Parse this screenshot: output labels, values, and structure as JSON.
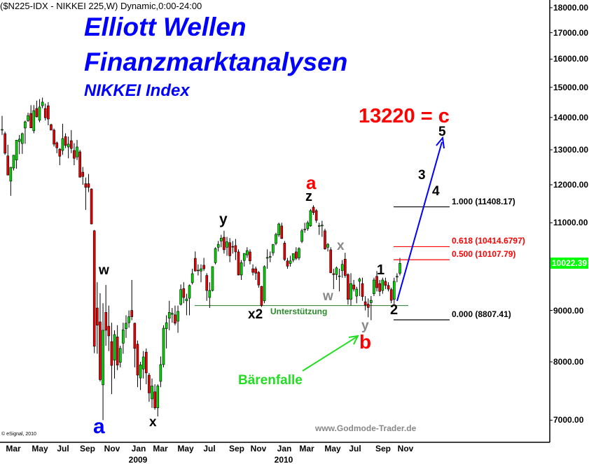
{
  "chart_data": {
    "type": "candlestick",
    "title": "($N225-IDX - NIKKEI 225,W) Dynamic,0:00-24:00",
    "y_scale": "log",
    "ylim": [
      6900,
      18300
    ],
    "y_ticks": [
      "18000.00",
      "17000.00",
      "16000.00",
      "15000.00",
      "14000.00",
      "13000.00",
      "12000.00",
      "11000.00",
      "9000.00",
      "8000.00",
      "7000.00"
    ],
    "y_tick_values": [
      18000,
      17000,
      16000,
      15000,
      14000,
      13000,
      12000,
      11000,
      9000,
      8000,
      7000
    ],
    "x_ticks": [
      "Mar",
      "May",
      "Jul",
      "Sep",
      "Nov",
      "Jan",
      "Mar",
      "May",
      "Jul",
      "Sep",
      "Nov",
      "Jan",
      "Mar",
      "May",
      "Jul",
      "Sep",
      "Nov"
    ],
    "x_years": [
      {
        "label": "2009",
        "under_tick": 5
      },
      {
        "label": "2010",
        "under_tick": 11
      }
    ],
    "last_price": {
      "label": "10022.39",
      "value": 10022.39,
      "color": "#00ff00"
    },
    "colors": {
      "up": "#00dd00",
      "down": "#ee0000",
      "wave": "#0000ff",
      "fib_main": "#000000",
      "fib_mid": "#ff0000",
      "support": "#2a7a2a"
    },
    "ohlc": [
      [
        13600,
        14050,
        13450,
        13620
      ],
      [
        13490,
        13550,
        12850,
        12900
      ],
      [
        12820,
        13150,
        12260,
        12270
      ],
      [
        12100,
        12500,
        11700,
        12490
      ],
      [
        12470,
        12850,
        12400,
        12840
      ],
      [
        12700,
        13300,
        12450,
        13290
      ],
      [
        13250,
        13450,
        12870,
        13320
      ],
      [
        13190,
        13520,
        12880,
        13490
      ],
      [
        13665,
        13900,
        13180,
        13860
      ],
      [
        13900,
        14150,
        13860,
        14060
      ],
      [
        14130,
        14400,
        13660,
        13670
      ],
      [
        13580,
        14400,
        13500,
        14220
      ],
      [
        14290,
        14550,
        14000,
        14020
      ],
      [
        13910,
        14600,
        13850,
        14340
      ],
      [
        14380,
        14650,
        14300,
        14500
      ],
      [
        14290,
        14450,
        13900,
        13990
      ],
      [
        14380,
        14500,
        13750,
        13950
      ],
      [
        13770,
        13800,
        13600,
        13600
      ],
      [
        13600,
        13650,
        13100,
        13170
      ],
      [
        13210,
        13250,
        12900,
        13060
      ],
      [
        13020,
        13050,
        12550,
        12810
      ],
      [
        12980,
        13800,
        12850,
        13340
      ],
      [
        13400,
        13500,
        13050,
        13130
      ],
      [
        13085,
        13400,
        12750,
        13170
      ],
      [
        13275,
        13600,
        12900,
        13040
      ],
      [
        12980,
        13200,
        12550,
        12750
      ],
      [
        12790,
        13300,
        12700,
        13085
      ],
      [
        12940,
        13000,
        12200,
        12210
      ],
      [
        12350,
        12500,
        12000,
        12230
      ],
      [
        12030,
        12200,
        11330,
        11930
      ],
      [
        12030,
        12300,
        11800,
        11930
      ],
      [
        11885,
        11900,
        10960,
        10970
      ],
      [
        10800,
        10820,
        8160,
        8290
      ],
      [
        9050,
        9600,
        8150,
        8700
      ],
      [
        8766,
        9360,
        7650,
        7680
      ],
      [
        7590,
        9150,
        7000,
        8600
      ],
      [
        8960,
        9540,
        8300,
        8600
      ],
      [
        8680,
        9100,
        8200,
        8490
      ],
      [
        8380,
        8750,
        7430,
        7935
      ],
      [
        8030,
        8600,
        7700,
        8515
      ],
      [
        8470,
        8700,
        7850,
        7940
      ],
      [
        7990,
        8300,
        7900,
        8250
      ],
      [
        8350,
        8750,
        8150,
        8610
      ],
      [
        8630,
        8900,
        8450,
        8740
      ],
      [
        8750,
        9000,
        8650,
        8870
      ],
      [
        9000,
        9650,
        8800,
        8870
      ],
      [
        8740,
        8750,
        7900,
        8250
      ],
      [
        8330,
        8400,
        7550,
        7760
      ],
      [
        7710,
        8000,
        7500,
        7945
      ],
      [
        7870,
        8200,
        7700,
        8090
      ],
      [
        8180,
        8250,
        7600,
        7800
      ],
      [
        7760,
        7800,
        7300,
        7450
      ],
      [
        7350,
        7700,
        7200,
        7570
      ],
      [
        7470,
        7600,
        7170,
        7200
      ],
      [
        7200,
        7600,
        7060,
        7570
      ],
      [
        7650,
        8100,
        7550,
        7950
      ],
      [
        7950,
        8700,
        7900,
        8640
      ],
      [
        8630,
        8900,
        8250,
        8750
      ],
      [
        8840,
        9200,
        8600,
        8960
      ],
      [
        8920,
        9050,
        8750,
        8940
      ],
      [
        8910,
        9100,
        8700,
        8740
      ],
      [
        8780,
        9100,
        8550,
        8980
      ],
      [
        9125,
        9550,
        9100,
        9440
      ],
      [
        9460,
        9600,
        9150,
        9270
      ],
      [
        9200,
        9350,
        8900,
        9240
      ],
      [
        9255,
        9550,
        8900,
        9530
      ],
      [
        9590,
        9900,
        9550,
        9790
      ],
      [
        10140,
        10300,
        9840,
        9850
      ],
      [
        9870,
        10000,
        9750,
        9860
      ],
      [
        9850,
        10000,
        9600,
        9900
      ],
      [
        9980,
        10150,
        9850,
        9900
      ],
      [
        9750,
        9800,
        9200,
        9420
      ],
      [
        9270,
        9600,
        9050,
        9420
      ],
      [
        9420,
        9950,
        9400,
        9950
      ],
      [
        10040,
        10400,
        10000,
        10370
      ],
      [
        10400,
        10550,
        10300,
        10470
      ],
      [
        10550,
        10700,
        10400,
        10620
      ],
      [
        10640,
        10800,
        10250,
        10340
      ],
      [
        10400,
        10650,
        10200,
        10530
      ],
      [
        10510,
        10620,
        10050,
        10200
      ],
      [
        10420,
        10550,
        10250,
        10410
      ],
      [
        10440,
        10600,
        10100,
        10290
      ],
      [
        10290,
        10350,
        9750,
        9760
      ],
      [
        9760,
        10100,
        9650,
        10040
      ],
      [
        10090,
        10250,
        9950,
        10255
      ],
      [
        10220,
        10400,
        10150,
        10320
      ],
      [
        10290,
        10350,
        10000,
        10080
      ],
      [
        9900,
        10000,
        9750,
        9820
      ],
      [
        9900,
        9950,
        9650,
        9800
      ],
      [
        9820,
        9850,
        9480,
        9540
      ],
      [
        9510,
        9520,
        9070,
        9100
      ],
      [
        9200,
        9980,
        9150,
        9950
      ],
      [
        10150,
        10350,
        9900,
        10160
      ],
      [
        10170,
        10300,
        10050,
        10180
      ],
      [
        10270,
        10450,
        10200,
        10470
      ],
      [
        10490,
        10750,
        10450,
        10710
      ],
      [
        10700,
        11000,
        10650,
        10970
      ],
      [
        10920,
        11000,
        10600,
        10610
      ],
      [
        10500,
        10550,
        10080,
        10110
      ],
      [
        10080,
        10150,
        9900,
        9960
      ],
      [
        10020,
        10200,
        9950,
        10080
      ],
      [
        10100,
        10250,
        10050,
        10250
      ],
      [
        10290,
        10400,
        10100,
        10140
      ],
      [
        10150,
        10400,
        10100,
        10370
      ],
      [
        10540,
        10850,
        10500,
        10800
      ],
      [
        10830,
        11000,
        10750,
        10840
      ],
      [
        10850,
        11050,
        10800,
        11000
      ],
      [
        10920,
        11350,
        10900,
        11310
      ],
      [
        11400,
        11450,
        11200,
        11260
      ],
      [
        11310,
        11350,
        11000,
        11060
      ],
      [
        10920,
        11000,
        10700,
        10930
      ],
      [
        10920,
        11050,
        10650,
        10940
      ],
      [
        10800,
        10850,
        10340,
        10360
      ],
      [
        10400,
        10500,
        10300,
        10470
      ],
      [
        10340,
        10400,
        9800,
        9810
      ],
      [
        9790,
        9900,
        9450,
        9770
      ],
      [
        9770,
        9950,
        9650,
        9920
      ],
      [
        9730,
        9900,
        9400,
        9740
      ],
      [
        9860,
        10100,
        9700,
        10000
      ],
      [
        10120,
        10270,
        9700,
        9750
      ],
      [
        9770,
        9800,
        9120,
        9230
      ],
      [
        9230,
        9800,
        9100,
        9570
      ],
      [
        9540,
        9650,
        9400,
        9450
      ],
      [
        9300,
        9500,
        9150,
        9450
      ],
      [
        9620,
        9700,
        9300,
        9670
      ],
      [
        9570,
        9700,
        9200,
        9290
      ],
      [
        9180,
        9300,
        9000,
        9110
      ],
      [
        9130,
        9250,
        8860,
        9060
      ],
      [
        9160,
        9300,
        8800,
        9210
      ],
      [
        9350,
        9700,
        9300,
        9650
      ],
      [
        9730,
        9850,
        9400,
        9480
      ],
      [
        9570,
        9650,
        9300,
        9400
      ],
      [
        9420,
        9700,
        9350,
        9650
      ],
      [
        9620,
        9700,
        9450,
        9530
      ],
      [
        9530,
        9600,
        9400,
        9450
      ],
      [
        9440,
        9480,
        9150,
        9210
      ],
      [
        9230,
        9700,
        9120,
        9620
      ],
      [
        9720,
        9800,
        9600,
        9730
      ],
      [
        9800,
        10150,
        9750,
        10022
      ]
    ],
    "fib_levels": [
      {
        "label": "1.000 (11408.17)",
        "value": 11408.17,
        "color": "#000000"
      },
      {
        "label": "0.618 (10414.6797)",
        "value": 10414.6797,
        "color": "#ff0000"
      },
      {
        "label": "0.500 (10107.79)",
        "value": 10107.79,
        "color": "#ff0000"
      },
      {
        "label": "0.000 (8807.41)",
        "value": 8807.41,
        "color": "#000000"
      }
    ],
    "support": {
      "label": "Unterstützung",
      "value": 9100
    },
    "target": {
      "label": "13220 = c",
      "value": 13220
    }
  },
  "headline": {
    "line1": "Elliott Wellen",
    "line2": "Finanzmarktanalysen",
    "line3": "NIKKEI Index"
  },
  "wave_labels": {
    "a_blue": "a",
    "x_low": "x",
    "w_black": "w",
    "y_top": "y",
    "x2": "x2",
    "a_red": "a",
    "z": "z",
    "x_grey": "x",
    "w_grey": "w",
    "y_grey": "y",
    "b_red": "b",
    "one": "1",
    "two": "2",
    "three": "3",
    "four": "4",
    "five": "5"
  },
  "trap_label": "Bärenfalle",
  "watermark": "www.Godmode-Trader.de",
  "copyright": "© eSignal, 2010"
}
